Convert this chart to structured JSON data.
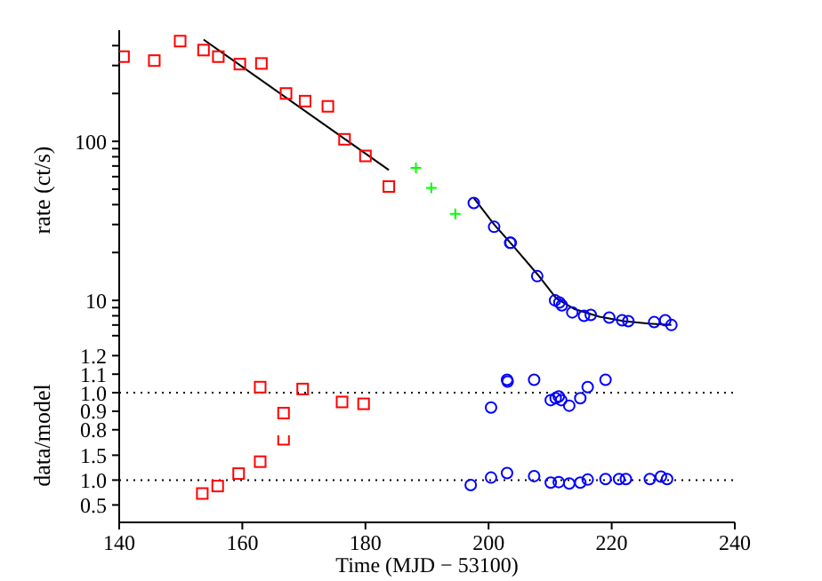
{
  "chart_data": [
    {
      "type": "scatter",
      "ylabel": "rate (ct/s)",
      "log": "y",
      "xlim": [
        140,
        240
      ],
      "xticks": [
        140,
        160,
        180,
        200,
        220,
        240
      ],
      "ylim": [
        5,
        500
      ],
      "yticks": [
        {
          "value": 6,
          "label": null
        },
        {
          "value": 7,
          "label": null
        },
        {
          "value": 8,
          "label": null
        },
        {
          "value": 9,
          "label": null
        },
        10,
        {
          "value": 20,
          "label": null
        },
        {
          "value": 30,
          "label": null
        },
        {
          "value": 40,
          "label": null
        },
        {
          "value": 50,
          "label": null
        },
        {
          "value": 60,
          "label": null
        },
        {
          "value": 70,
          "label": null
        },
        {
          "value": 80,
          "label": null
        },
        {
          "value": 90,
          "label": null
        },
        100,
        {
          "value": 200,
          "label": null
        },
        {
          "value": 300,
          "label": null
        },
        {
          "value": 400,
          "label": null
        }
      ],
      "tick_labels": "y",
      "grid": false,
      "legend": false,
      "series": [
        {
          "type": "scatter",
          "marker": "square",
          "color": "#ff0000",
          "x": [
            140.7,
            145.7,
            149.9,
            153.7,
            156.1,
            159.6,
            163.1,
            167.1,
            170.2,
            173.9,
            176.6,
            180,
            183.8
          ],
          "values": [
            341,
            322,
            427,
            375,
            341,
            306,
            309,
            200,
            179,
            166,
            103,
            81,
            52
          ]
        },
        {
          "type": "scatter",
          "marker": "cross",
          "color": "#00ff00",
          "x": [
            188.2,
            190.7,
            194.6
          ],
          "values": [
            68,
            51,
            35
          ]
        },
        {
          "type": "scatter",
          "marker": "circle",
          "color": "#0000ff",
          "x": [
            197.6,
            200.9,
            203.5,
            203.6,
            207.9,
            210.8,
            211.5,
            211.9,
            213.6,
            215.5,
            216.6,
            219.6,
            221.7,
            222.7,
            226.9,
            228.7,
            229.7
          ],
          "values": [
            41,
            29,
            23,
            23,
            14.2,
            10,
            9.7,
            9.3,
            8.4,
            8,
            8.1,
            7.8,
            7.5,
            7.4,
            7.3,
            7.5,
            7
          ]
        },
        {
          "type": "line",
          "marker": "none",
          "color": "#000000",
          "x": [
            153.7,
            183.8
          ],
          "values": [
            437,
            66
          ]
        },
        {
          "type": "line",
          "marker": "none",
          "color": "#000000",
          "x": [
            197.6,
            200.9,
            204,
            208,
            211,
            214,
            218,
            222,
            226,
            229.7
          ],
          "values": [
            44,
            30,
            22,
            14.5,
            10.3,
            8.8,
            7.9,
            7.4,
            7.15,
            7
          ]
        }
      ]
    },
    {
      "type": "scatter",
      "ylabel": "data/model",
      "xlim": [
        140,
        240
      ],
      "xticks": [
        140,
        160,
        180,
        200,
        220,
        240
      ],
      "ylim": [
        0.77,
        1.24
      ],
      "yticks": [
        0.8,
        0.9,
        {
          "value": 1,
          "label": "1.0"
        },
        1.1,
        1.2
      ],
      "tick_labels": "y",
      "grid": false,
      "legend": false,
      "ref_lines": [
        {
          "axis": "y",
          "value": 1,
          "color": "#000000",
          "line_style": "dotted"
        }
      ],
      "series": [
        {
          "type": "scatter",
          "marker": "square",
          "color": "#ff0000",
          "x": [
            162.9,
            166.7,
            169.8,
            176.2,
            179.7
          ],
          "values": [
            1.03,
            0.89,
            1.02,
            0.95,
            0.94
          ]
        },
        {
          "type": "scatter",
          "marker": "circle",
          "color": "#0000ff",
          "x": [
            200.4,
            203,
            203.1,
            207.4,
            210.1,
            210.9,
            211.4,
            211.8,
            213.1,
            214.9,
            216.1,
            219
          ],
          "values": [
            0.92,
            1.07,
            1.06,
            1.07,
            0.96,
            0.97,
            0.98,
            0.96,
            0.93,
            0.97,
            1.03,
            1.07
          ]
        }
      ]
    },
    {
      "type": "scatter",
      "xlabel": "Time (MJD − 53100)",
      "xlim": [
        140,
        240
      ],
      "xticks": [
        140,
        160,
        180,
        200,
        220,
        240
      ],
      "ylim": [
        0.15,
        1.9
      ],
      "yticks": [
        0.5,
        {
          "value": 1,
          "label": "1.0"
        },
        1.5
      ],
      "grid": false,
      "legend": false,
      "ref_lines": [
        {
          "axis": "y",
          "value": 1,
          "color": "#000000",
          "line_style": "dotted"
        }
      ],
      "series": [
        {
          "type": "scatter",
          "marker": "square",
          "color": "#ff0000",
          "x": [
            153.5,
            156,
            159.4,
            162.9,
            166.7
          ],
          "values": [
            0.73,
            0.88,
            1.13,
            1.37,
            1.82
          ]
        },
        {
          "type": "scatter",
          "marker": "circle",
          "color": "#0000ff",
          "x": [
            197.1,
            200.4,
            203,
            207.4,
            210.1,
            211.4,
            213.1,
            214.9,
            216.1,
            219,
            221.2,
            222.3,
            226.2,
            228,
            229
          ],
          "values": [
            0.9,
            1.05,
            1.14,
            1.08,
            0.95,
            0.96,
            0.93,
            0.95,
            1.01,
            1.02,
            1.02,
            1.02,
            1.02,
            1.07,
            1.02
          ]
        }
      ]
    }
  ]
}
